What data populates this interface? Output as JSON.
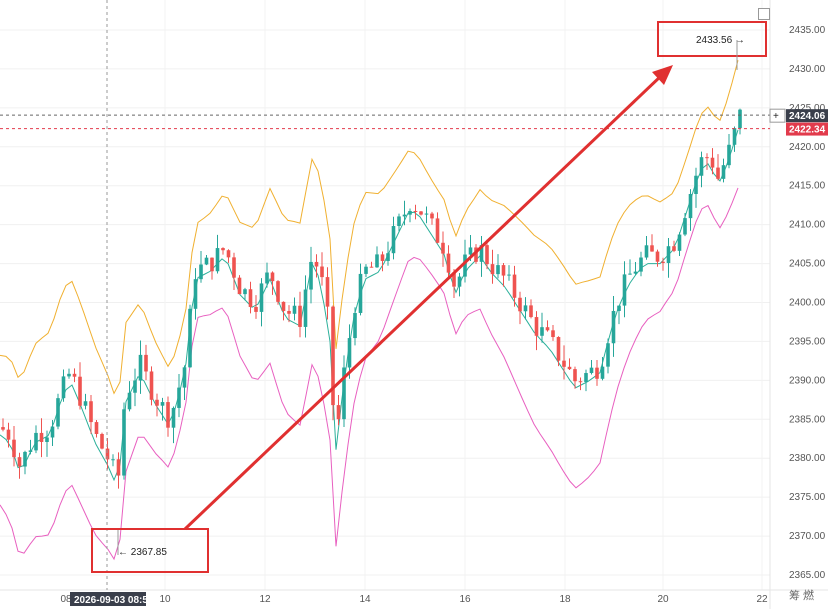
{
  "chart_data": {
    "type": "candlestick",
    "y_axis": {
      "ticks": [
        "2435.00",
        "2430.00",
        "2425.00",
        "2420.00",
        "2415.00",
        "2410.00",
        "2405.00",
        "2400.00",
        "2395.00",
        "2390.00",
        "2385.00",
        "2380.00",
        "2375.00",
        "2370.00",
        "2365.00"
      ],
      "range": [
        2363,
        2437
      ],
      "position": "right"
    },
    "x_axis": {
      "ticks": [
        "10",
        "12",
        "14",
        "16",
        "18",
        "20",
        "22"
      ],
      "cursor_label": "2026-09-03 08:50",
      "partial_label": "08"
    },
    "price_badges": [
      {
        "value": "2424.06",
        "color": "#3a3f4b",
        "marker": "+"
      },
      {
        "value": "2422.34",
        "color": "#e23b4c"
      }
    ],
    "annotations": [
      {
        "label": "← 2367.85",
        "value": 2367.85,
        "kind": "low"
      },
      {
        "label": "2433.56 →",
        "value": 2433.56,
        "kind": "high"
      }
    ],
    "series": [
      {
        "name": "",
        "color": "#26a69a",
        "kind": "candles_up"
      },
      {
        "name": "",
        "color": "#ef5350",
        "kind": "candles_down"
      },
      {
        "name": "",
        "color": "#f0b030",
        "kind": "band_upper"
      },
      {
        "name": "",
        "color": "#2bb09a",
        "kind": "band_mid"
      },
      {
        "name": "",
        "color": "#e860c0",
        "kind": "band_lower"
      }
    ],
    "grid": true,
    "legend": "none"
  },
  "footer_glyphs": "筹 燃",
  "colors": {
    "up": "#26a69a",
    "down": "#ef5350",
    "annotation": "#e03030"
  }
}
